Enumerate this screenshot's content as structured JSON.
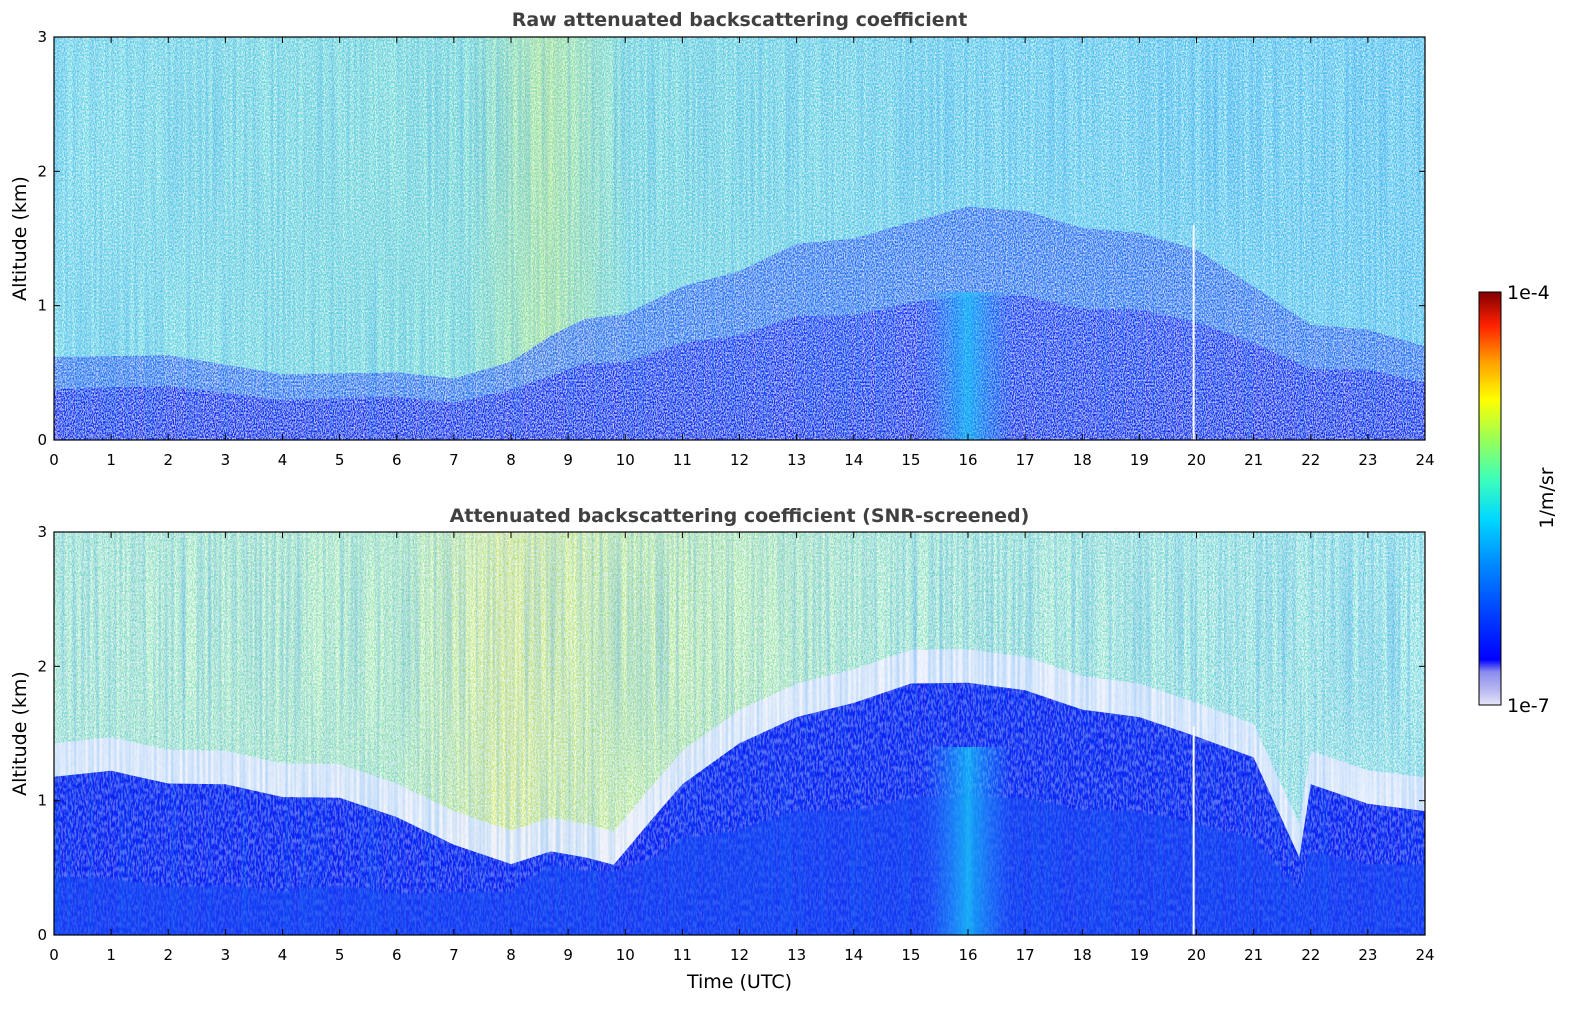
{
  "chart_data": [
    {
      "type": "heatmap",
      "title": "Raw attenuated backscattering coefficient",
      "xlabel": "",
      "ylabel": "Altitude (km)",
      "xlim": [
        0,
        24
      ],
      "ylim": [
        0,
        3
      ],
      "xticks": [
        "0",
        "1",
        "2",
        "3",
        "4",
        "5",
        "6",
        "7",
        "8",
        "9",
        "10",
        "11",
        "12",
        "13",
        "14",
        "15",
        "16",
        "17",
        "18",
        "19",
        "20",
        "21",
        "22",
        "23",
        "24"
      ],
      "yticks": [
        "0",
        "1",
        "2",
        "3"
      ],
      "profile": {
        "hours": [
          0,
          2,
          4,
          6,
          7,
          8,
          8.7,
          9.3,
          10,
          11,
          12,
          13,
          14,
          15,
          16,
          17,
          18,
          19,
          20,
          21,
          22,
          23,
          24
        ],
        "surface_layer_top_km": [
          0.4,
          0.38,
          0.32,
          0.3,
          0.3,
          0.35,
          0.5,
          0.55,
          0.6,
          0.7,
          0.8,
          0.9,
          0.95,
          1.0,
          1.1,
          1.05,
          1.0,
          0.95,
          0.9,
          0.7,
          0.55,
          0.5,
          0.45
        ],
        "noise_level_above": "high"
      },
      "gap_hour": 19.95
    },
    {
      "type": "heatmap",
      "title": "Attenuated backscattering coefficient (SNR-screened)",
      "xlabel": "Time (UTC)",
      "ylabel": "Altitude (km)",
      "xlim": [
        0,
        24
      ],
      "ylim": [
        0,
        3
      ],
      "xticks": [
        "0",
        "1",
        "2",
        "3",
        "4",
        "5",
        "6",
        "7",
        "8",
        "9",
        "10",
        "11",
        "12",
        "13",
        "14",
        "15",
        "16",
        "17",
        "18",
        "19",
        "20",
        "21",
        "22",
        "23",
        "24"
      ],
      "yticks": [
        "0",
        "1",
        "2",
        "3"
      ],
      "profile": {
        "hours": [
          0,
          1,
          2,
          3,
          4,
          5,
          6,
          7,
          8,
          8.7,
          9.3,
          9.8,
          10.5,
          11,
          12,
          13,
          14,
          15,
          16,
          17,
          18,
          19,
          20,
          21,
          21.8,
          22,
          23,
          24
        ],
        "boundary_layer_top_km": [
          1.2,
          1.2,
          1.15,
          1.1,
          1.05,
          1.0,
          0.9,
          0.65,
          0.55,
          0.6,
          0.6,
          0.5,
          0.9,
          1.1,
          1.45,
          1.6,
          1.75,
          1.85,
          1.9,
          1.8,
          1.7,
          1.6,
          1.5,
          1.3,
          0.6,
          1.1,
          1.0,
          0.9
        ],
        "dense_layer_top_km": [
          0.45,
          0.4,
          0.38,
          0.35,
          0.35,
          0.35,
          0.33,
          0.3,
          0.35,
          0.5,
          0.5,
          0.45,
          0.6,
          0.7,
          0.8,
          0.9,
          0.95,
          1.0,
          1.05,
          1.0,
          0.95,
          0.9,
          0.85,
          0.7,
          0.35,
          0.6,
          0.55,
          0.5
        ]
      },
      "gap_hour": 19.95
    }
  ],
  "colorbar": {
    "label": "1/m/sr",
    "min_label": "1e-7",
    "max_label": "1e-4",
    "scale": "log",
    "range": [
      1e-07,
      0.0001
    ],
    "colormap": "jet",
    "low_colors": [
      "#e6e6fa",
      "#b4b4f0",
      "#8c8cf0",
      "#6464f0"
    ]
  }
}
